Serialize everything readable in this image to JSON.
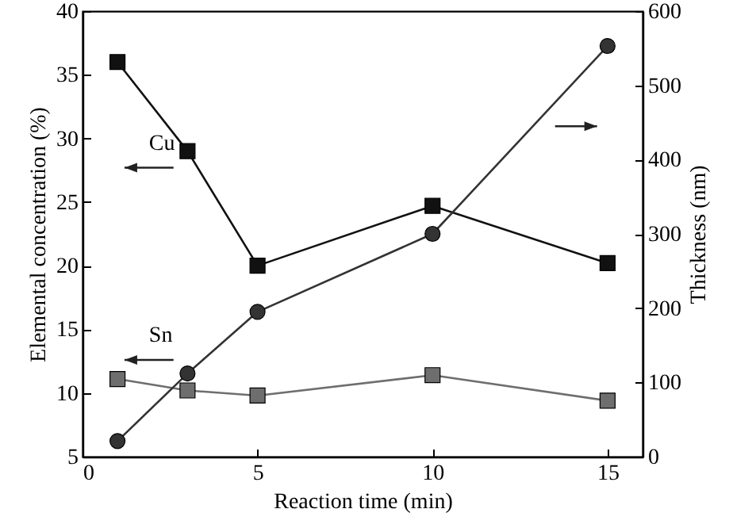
{
  "chart_data": {
    "type": "line",
    "xlabel": "Reaction time (min)",
    "ylabel": "Elemental concentration (%)",
    "y2label": "Thickness (nm)",
    "x": [
      1,
      3,
      5,
      10,
      15
    ],
    "series": [
      {
        "name": "Cu",
        "color": "#111111",
        "marker": "square",
        "values": [
          36.0,
          29.0,
          20.0,
          24.7,
          20.2
        ]
      },
      {
        "name": "Sn",
        "color": "#6e6e6e",
        "marker": "square",
        "values": [
          11.1,
          10.2,
          9.8,
          11.4,
          9.4
        ]
      },
      {
        "color": "#333333",
        "marker": "circle",
        "axis": "y2",
        "values": [
          21,
          112,
          195,
          300,
          553
        ]
      }
    ],
    "xlim": [
      0,
      16
    ],
    "xticks": [
      0,
      5,
      10,
      15
    ],
    "ylim": [
      5,
      40
    ],
    "yticks": [
      5,
      10,
      15,
      20,
      25,
      30,
      35,
      40
    ],
    "y2lim": [
      0,
      600
    ],
    "y2ticks": [
      0,
      100,
      200,
      300,
      400,
      500,
      600
    ],
    "grid": false
  }
}
